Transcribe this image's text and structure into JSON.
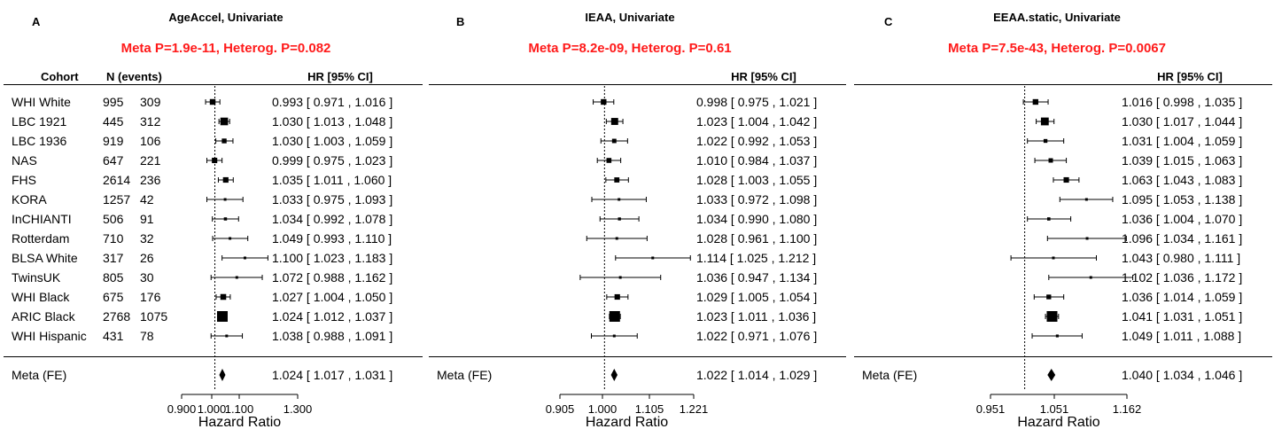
{
  "chart_data": [
    {
      "type": "forest",
      "panel_letter": "A",
      "title": "AgeAccel, Univariate",
      "meta_text": "Meta P=1.9e-11, Heterog. P=0.082",
      "col_cohort": "Cohort",
      "col_n": "N (events)",
      "col_hr": "HR [95% CI]",
      "xlabel": "Hazard Ratio",
      "xticks": [
        "0.900",
        "1.000",
        "1.100",
        "1.300"
      ],
      "xlim": [
        0.9,
        1.3
      ],
      "reference_line": 1.0,
      "rows": [
        {
          "cohort": "WHI White",
          "n": "995",
          "events": "309",
          "hr": 0.993,
          "lo": 0.971,
          "hi": 1.016,
          "text": "0.993 [ 0.971 , 1.016 ]"
        },
        {
          "cohort": "LBC 1921",
          "n": "445",
          "events": "312",
          "hr": 1.03,
          "lo": 1.013,
          "hi": 1.048,
          "text": "1.030 [ 1.013 , 1.048 ]"
        },
        {
          "cohort": "LBC 1936",
          "n": "919",
          "events": "106",
          "hr": 1.03,
          "lo": 1.003,
          "hi": 1.059,
          "text": "1.030 [ 1.003 , 1.059 ]"
        },
        {
          "cohort": "NAS",
          "n": "647",
          "events": "221",
          "hr": 0.999,
          "lo": 0.975,
          "hi": 1.023,
          "text": "0.999 [ 0.975 , 1.023 ]"
        },
        {
          "cohort": "FHS",
          "n": "2614",
          "events": "236",
          "hr": 1.035,
          "lo": 1.011,
          "hi": 1.06,
          "text": "1.035 [ 1.011 , 1.060 ]"
        },
        {
          "cohort": "KORA",
          "n": "1257",
          "events": "42",
          "hr": 1.033,
          "lo": 0.975,
          "hi": 1.093,
          "text": "1.033 [ 0.975 , 1.093 ]"
        },
        {
          "cohort": "InCHIANTI",
          "n": "506",
          "events": "91",
          "hr": 1.034,
          "lo": 0.992,
          "hi": 1.078,
          "text": "1.034 [ 0.992 , 1.078 ]"
        },
        {
          "cohort": "Rotterdam",
          "n": "710",
          "events": "32",
          "hr": 1.049,
          "lo": 0.993,
          "hi": 1.11,
          "text": "1.049 [ 0.993 , 1.110 ]"
        },
        {
          "cohort": "BLSA White",
          "n": "317",
          "events": "26",
          "hr": 1.1,
          "lo": 1.023,
          "hi": 1.183,
          "text": "1.100 [ 1.023 , 1.183 ]"
        },
        {
          "cohort": "TwinsUK",
          "n": "805",
          "events": "30",
          "hr": 1.072,
          "lo": 0.988,
          "hi": 1.162,
          "text": "1.072 [ 0.988 , 1.162 ]"
        },
        {
          "cohort": "WHI Black",
          "n": "675",
          "events": "176",
          "hr": 1.027,
          "lo": 1.004,
          "hi": 1.05,
          "text": "1.027 [ 1.004 , 1.050 ]"
        },
        {
          "cohort": "ARIC Black",
          "n": "2768",
          "events": "1075",
          "hr": 1.024,
          "lo": 1.012,
          "hi": 1.037,
          "text": "1.024 [ 1.012 , 1.037 ]"
        },
        {
          "cohort": "WHI Hispanic",
          "n": "431",
          "events": "78",
          "hr": 1.038,
          "lo": 0.988,
          "hi": 1.091,
          "text": "1.038 [ 0.988 , 1.091 ]"
        }
      ],
      "meta_row": {
        "label": "Meta (FE)",
        "hr": 1.024,
        "lo": 1.017,
        "hi": 1.031,
        "text": "1.024 [ 1.017 , 1.031 ]"
      }
    },
    {
      "type": "forest",
      "panel_letter": "B",
      "title": "IEAA, Univariate",
      "meta_text": "Meta P=8.2e-09, Heterog. P=0.61",
      "col_hr": "HR [95% CI]",
      "xlabel": "Hazard Ratio",
      "xticks": [
        "0.905",
        "1.000",
        "1.105",
        "1.221"
      ],
      "xlim": [
        0.905,
        1.221
      ],
      "reference_line": 1.0,
      "rows": [
        {
          "hr": 0.998,
          "lo": 0.975,
          "hi": 1.021,
          "text": "0.998 [ 0.975 , 1.021 ]"
        },
        {
          "hr": 1.023,
          "lo": 1.004,
          "hi": 1.042,
          "text": "1.023 [ 1.004 , 1.042 ]"
        },
        {
          "hr": 1.022,
          "lo": 0.992,
          "hi": 1.053,
          "text": "1.022 [ 0.992 , 1.053 ]"
        },
        {
          "hr": 1.01,
          "lo": 0.984,
          "hi": 1.037,
          "text": "1.010 [ 0.984 , 1.037 ]"
        },
        {
          "hr": 1.028,
          "lo": 1.003,
          "hi": 1.055,
          "text": "1.028 [ 1.003 , 1.055 ]"
        },
        {
          "hr": 1.033,
          "lo": 0.972,
          "hi": 1.098,
          "text": "1.033 [ 0.972 , 1.098 ]"
        },
        {
          "hr": 1.034,
          "lo": 0.99,
          "hi": 1.08,
          "text": "1.034 [ 0.990 , 1.080 ]"
        },
        {
          "hr": 1.028,
          "lo": 0.961,
          "hi": 1.1,
          "text": "1.028 [ 0.961 , 1.100 ]"
        },
        {
          "hr": 1.114,
          "lo": 1.025,
          "hi": 1.212,
          "text": "1.114 [ 1.025 , 1.212 ]"
        },
        {
          "hr": 1.036,
          "lo": 0.947,
          "hi": 1.134,
          "text": "1.036 [ 0.947 , 1.134 ]"
        },
        {
          "hr": 1.029,
          "lo": 1.005,
          "hi": 1.054,
          "text": "1.029 [ 1.005 , 1.054 ]"
        },
        {
          "hr": 1.023,
          "lo": 1.011,
          "hi": 1.036,
          "text": "1.023 [ 1.011 , 1.036 ]"
        },
        {
          "hr": 1.022,
          "lo": 0.971,
          "hi": 1.076,
          "text": "1.022 [ 0.971 , 1.076 ]"
        }
      ],
      "meta_row": {
        "label": "Meta (FE)",
        "hr": 1.022,
        "lo": 1.014,
        "hi": 1.029,
        "text": "1.022 [ 1.014 , 1.029 ]"
      }
    },
    {
      "type": "forest",
      "panel_letter": "C",
      "title": "EEAA.static, Univariate",
      "meta_text": "Meta P=7.5e-43, Heterog. P=0.0067",
      "col_hr": "HR [95% CI]",
      "xlabel": "Hazard Ratio",
      "xticks": [
        "0.951",
        "1.051",
        "1.162"
      ],
      "xlim": [
        0.951,
        1.162
      ],
      "reference_line": 1.0,
      "rows": [
        {
          "hr": 1.016,
          "lo": 0.998,
          "hi": 1.035,
          "text": "1.016 [ 0.998 , 1.035 ]"
        },
        {
          "hr": 1.03,
          "lo": 1.017,
          "hi": 1.044,
          "text": "1.030 [ 1.017 , 1.044 ]"
        },
        {
          "hr": 1.031,
          "lo": 1.004,
          "hi": 1.059,
          "text": "1.031 [ 1.004 , 1.059 ]"
        },
        {
          "hr": 1.039,
          "lo": 1.015,
          "hi": 1.063,
          "text": "1.039 [ 1.015 , 1.063 ]"
        },
        {
          "hr": 1.063,
          "lo": 1.043,
          "hi": 1.083,
          "text": "1.063 [ 1.043 , 1.083 ]"
        },
        {
          "hr": 1.095,
          "lo": 1.053,
          "hi": 1.138,
          "text": "1.095 [ 1.053 , 1.138 ]"
        },
        {
          "hr": 1.036,
          "lo": 1.004,
          "hi": 1.07,
          "text": "1.036 [ 1.004 , 1.070 ]"
        },
        {
          "hr": 1.096,
          "lo": 1.034,
          "hi": 1.161,
          "text": "1.096 [ 1.034 , 1.161 ]"
        },
        {
          "hr": 1.043,
          "lo": 0.98,
          "hi": 1.111,
          "text": "1.043 [ 0.980 , 1.111 ]"
        },
        {
          "hr": 1.102,
          "lo": 1.036,
          "hi": 1.172,
          "text": "1.102 [ 1.036 , 1.172 ]"
        },
        {
          "hr": 1.036,
          "lo": 1.014,
          "hi": 1.059,
          "text": "1.036 [ 1.014 , 1.059 ]"
        },
        {
          "hr": 1.041,
          "lo": 1.031,
          "hi": 1.051,
          "text": "1.041 [ 1.031 , 1.051 ]"
        },
        {
          "hr": 1.049,
          "lo": 1.011,
          "hi": 1.088,
          "text": "1.049 [ 1.011 , 1.088 ]"
        }
      ],
      "meta_row": {
        "label": "Meta (FE)",
        "hr": 1.04,
        "lo": 1.034,
        "hi": 1.046,
        "text": "1.040 [ 1.034 , 1.046 ]"
      }
    }
  ]
}
